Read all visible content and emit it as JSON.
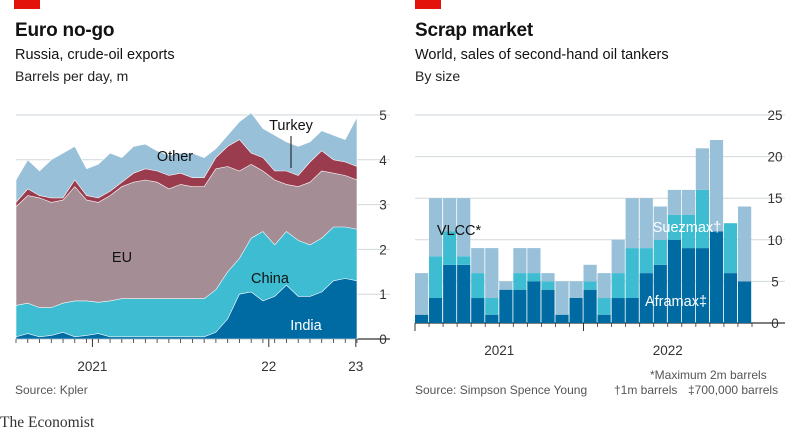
{
  "brand": "The Economist",
  "chart_data": [
    {
      "type": "area",
      "title": "Euro no-go",
      "subtitle": "Russia, crude-oil exports",
      "ylabel": "Barrels per day, m",
      "source": "Source: Kpler",
      "x_ticks": [
        "2021",
        "22",
        "23"
      ],
      "ylim": [
        0,
        5
      ],
      "yticks": [
        0,
        1,
        2,
        3,
        4,
        5
      ],
      "grid": true,
      "series_order": [
        "India",
        "China",
        "EU",
        "Turkey",
        "Other"
      ],
      "colors": {
        "India": "#006ba2",
        "China": "#3ebcd2",
        "EU": "#a58d95",
        "Turkey": "#9a3b4e",
        "Other": "#98c0d8"
      },
      "labels": [
        "India",
        "China",
        "EU",
        "Turkey",
        "Other"
      ],
      "cumulative_top": {
        "India": [
          0.05,
          0.12,
          0.05,
          0.08,
          0.15,
          0.05,
          0.08,
          0.12,
          0.05,
          0.05,
          0.05,
          0.05,
          0.05,
          0.05,
          0.05,
          0.05,
          0.05,
          0.15,
          0.45,
          1.0,
          1.05,
          0.85,
          0.95,
          1.2,
          0.95,
          0.95,
          1.05,
          1.3,
          1.35,
          1.3
        ],
        "China": [
          0.75,
          0.8,
          0.7,
          0.7,
          0.8,
          0.85,
          0.85,
          0.82,
          0.85,
          0.9,
          0.9,
          0.9,
          0.9,
          0.9,
          0.9,
          0.9,
          0.9,
          1.1,
          1.5,
          1.8,
          2.25,
          2.4,
          2.1,
          2.4,
          2.2,
          2.1,
          2.25,
          2.5,
          2.5,
          2.45
        ],
        "EU": [
          2.95,
          3.2,
          3.15,
          3.05,
          3.1,
          3.4,
          3.1,
          3.05,
          3.2,
          3.4,
          3.5,
          3.55,
          3.5,
          3.35,
          3.45,
          3.4,
          3.4,
          3.8,
          3.85,
          3.75,
          3.9,
          3.75,
          3.55,
          3.45,
          3.4,
          3.5,
          3.75,
          3.7,
          3.65,
          3.55
        ],
        "Turkey": [
          3.05,
          3.35,
          3.2,
          3.15,
          3.15,
          3.55,
          3.2,
          3.15,
          3.3,
          3.5,
          3.7,
          3.8,
          3.75,
          3.65,
          3.7,
          3.6,
          3.6,
          4.05,
          4.3,
          4.45,
          4.15,
          4.05,
          3.75,
          3.75,
          3.65,
          3.95,
          4.2,
          4.0,
          3.95,
          3.85
        ],
        "Other": [
          3.55,
          4.0,
          3.75,
          4.0,
          4.15,
          4.3,
          3.8,
          3.9,
          4.15,
          4.05,
          4.3,
          4.35,
          4.2,
          4.1,
          4.15,
          4.15,
          4.05,
          4.25,
          4.55,
          4.85,
          5.05,
          4.7,
          4.55,
          4.4,
          4.3,
          4.4,
          4.65,
          4.55,
          4.45,
          4.95
        ]
      }
    },
    {
      "type": "bar",
      "title": "Scrap market",
      "subtitle": "World, sales of second-hand oil tankers",
      "ylabel": "By size",
      "source": "Source: Simpson Spence Young",
      "x_ticks": [
        "2021",
        "2022"
      ],
      "ylim": [
        0,
        25
      ],
      "yticks": [
        0,
        5,
        10,
        15,
        20,
        25
      ],
      "grid": true,
      "stacked": true,
      "series": [
        {
          "name": "Aframax‡",
          "color": "#006ba2",
          "values": [
            1,
            3,
            7,
            7,
            3,
            1,
            4,
            4,
            5,
            4,
            1,
            3,
            4,
            1,
            3,
            3,
            6,
            7,
            10,
            9,
            9,
            11,
            6,
            5
          ]
        },
        {
          "name": "Suezmax†",
          "color": "#3ebcd2",
          "values": [
            0,
            5,
            4,
            1,
            3,
            2,
            0,
            2,
            1,
            1,
            0,
            0,
            1,
            2,
            3,
            6,
            3,
            3,
            3,
            4,
            7,
            0,
            6,
            0
          ]
        },
        {
          "name": "VLCC*",
          "color": "#98c0d8",
          "values": [
            5,
            7,
            4,
            7,
            3,
            6,
            1,
            3,
            3,
            1,
            4,
            2,
            2,
            3,
            4,
            6,
            6,
            4,
            3,
            3,
            5,
            11,
            0,
            9
          ]
        }
      ],
      "footnotes": {
        "vlcc": "*Maximum 2m barrels",
        "suezmax": "†1m barrels",
        "aframax": "‡700,000 barrels"
      }
    }
  ]
}
